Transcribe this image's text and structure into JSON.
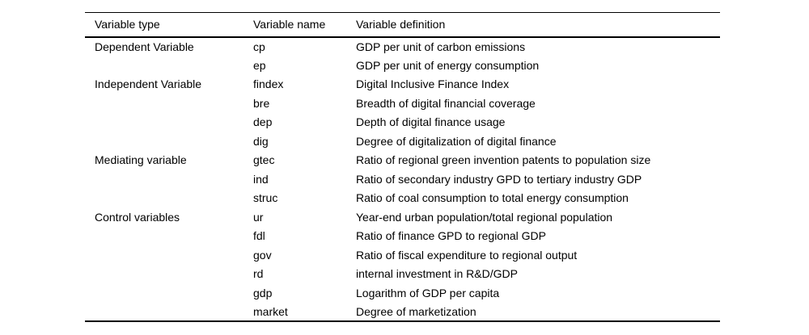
{
  "table": {
    "columns": [
      "Variable type",
      "Variable name",
      "Variable definition"
    ],
    "rows": [
      {
        "type": "Dependent Variable",
        "name": "cp",
        "definition": "GDP per unit of carbon emissions"
      },
      {
        "type": "",
        "name": "ep",
        "definition": "GDP per unit of energy consumption"
      },
      {
        "type": "Independent Variable",
        "name": "findex",
        "definition": "Digital Inclusive Finance Index"
      },
      {
        "type": "",
        "name": "bre",
        "definition": "Breadth of digital financial coverage"
      },
      {
        "type": "",
        "name": "dep",
        "definition": "Depth of digital finance usage"
      },
      {
        "type": "",
        "name": "dig",
        "definition": "Degree of digitalization of digital finance"
      },
      {
        "type": "Mediating variable",
        "name": "gtec",
        "definition": "Ratio of regional green invention patents to population size"
      },
      {
        "type": "",
        "name": "ind",
        "definition": "Ratio of secondary industry GPD to tertiary industry GDP"
      },
      {
        "type": "",
        "name": "struc",
        "definition": "Ratio of coal consumption to total energy consumption"
      },
      {
        "type": "Control variables",
        "name": "ur",
        "definition": "Year-end urban population/total regional population"
      },
      {
        "type": "",
        "name": "fdl",
        "definition": "Ratio of finance GPD to regional GDP"
      },
      {
        "type": "",
        "name": "gov",
        "definition": "Ratio of fiscal expenditure to regional output"
      },
      {
        "type": "",
        "name": "rd",
        "definition": "internal investment in R&D/GDP"
      },
      {
        "type": "",
        "name": "gdp",
        "definition": "Logarithm of GDP per capita"
      },
      {
        "type": "",
        "name": "market",
        "definition": "Degree of marketization"
      }
    ]
  },
  "colors": {
    "text": "#000000",
    "rule": "#000000",
    "background": "#ffffff"
  }
}
